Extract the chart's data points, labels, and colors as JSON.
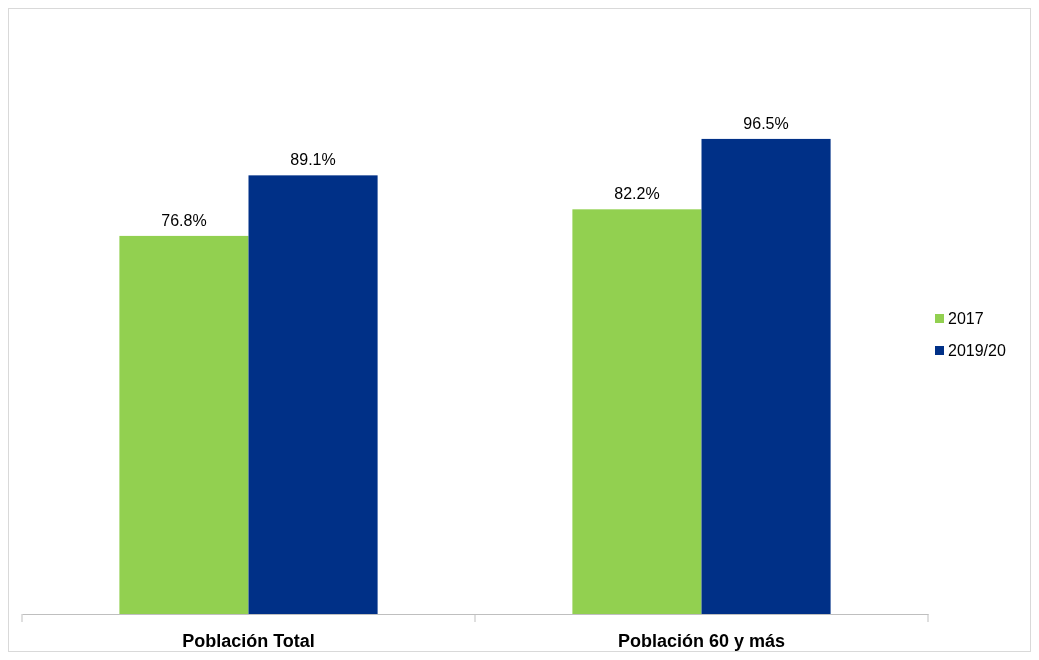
{
  "chart_data": {
    "type": "bar",
    "categories": [
      "Población Total",
      "Población 60 y más"
    ],
    "series": [
      {
        "name": "2017",
        "color": "#92d050",
        "values": [
          76.8,
          82.2
        ],
        "value_labels": [
          "76.8%",
          "82.2%"
        ]
      },
      {
        "name": "2019/20",
        "color": "#003087",
        "values": [
          89.1,
          96.5
        ],
        "value_labels": [
          "89.1%",
          "96.5%"
        ]
      }
    ],
    "tick_labels": "x",
    "legend": "right"
  }
}
